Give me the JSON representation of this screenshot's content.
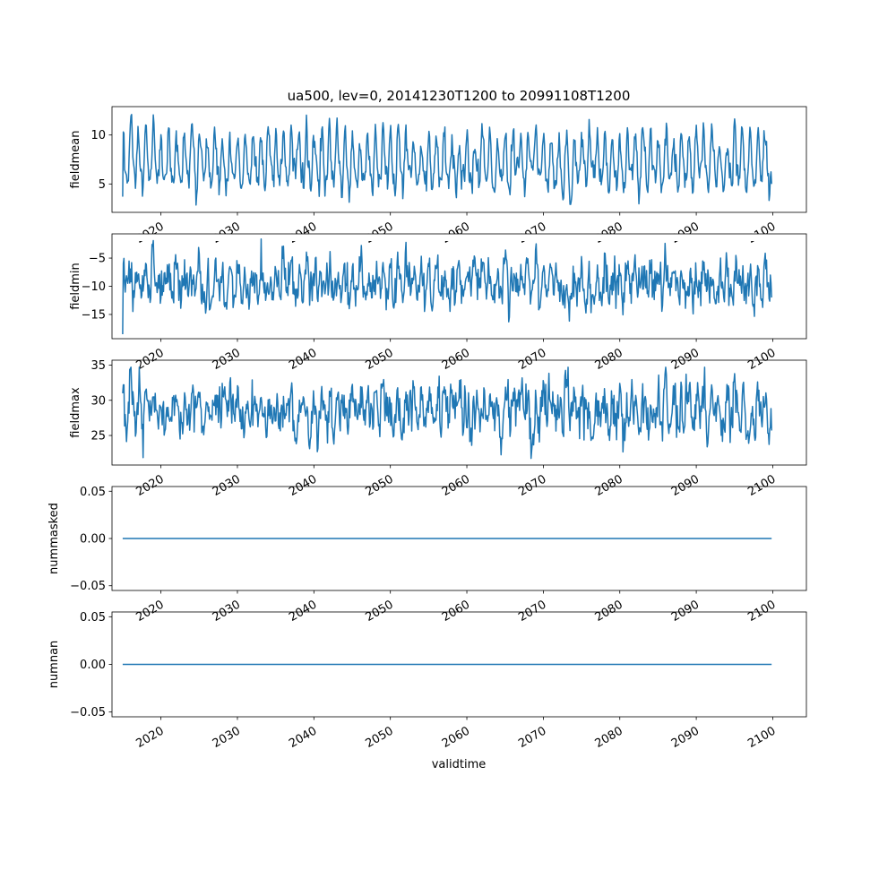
{
  "figure": {
    "title": "ua500, lev=0, 20141230T1200 to 20991108T1200",
    "xlabel": "validtime"
  },
  "colors": {
    "line": "#1f77b4",
    "axes": "#000000",
    "background": "#ffffff"
  },
  "chart_data": [
    {
      "type": "line",
      "ylabel": "fieldmean",
      "x_range": [
        "2014-12-30",
        "2099-11-08"
      ],
      "xlim": [
        2013.6,
        2104.4
      ],
      "ylim": [
        2.1,
        12.9
      ],
      "yticks": [
        5,
        10
      ],
      "xticks": [
        2020,
        2030,
        2040,
        2050,
        2060,
        2070,
        2080,
        2090,
        2100
      ],
      "series": [
        {
          "kind": "seasonal",
          "cycle_center": 7.2,
          "cycle_amplitude": 2.4,
          "noise": 1.0,
          "start": 3.7,
          "end": 5.0,
          "min": 2.5,
          "max": 12.6
        }
      ]
    },
    {
      "type": "line",
      "ylabel": "fieldmin",
      "x_range": [
        "2014-12-30",
        "2099-11-08"
      ],
      "xlim": [
        2013.6,
        2104.4
      ],
      "ylim": [
        -19.3,
        -0.7
      ],
      "yticks": [
        -15,
        -10,
        -5
      ],
      "xticks": [
        2020,
        2030,
        2040,
        2050,
        2060,
        2070,
        2080,
        2090,
        2100
      ],
      "series": [
        {
          "kind": "noisy",
          "cycle_center": -9.5,
          "cycle_amplitude": 1.8,
          "noise": 2.4,
          "start": -18.5,
          "end": -12.0,
          "min": -18.5,
          "max": -1.5
        }
      ]
    },
    {
      "type": "line",
      "ylabel": "fieldmax",
      "x_range": [
        "2014-12-30",
        "2099-11-08"
      ],
      "xlim": [
        2013.6,
        2104.4
      ],
      "ylim": [
        20.8,
        35.7
      ],
      "yticks": [
        25,
        30,
        35
      ],
      "xticks": [
        2020,
        2030,
        2040,
        2050,
        2060,
        2070,
        2080,
        2090,
        2100
      ],
      "series": [
        {
          "kind": "noisy",
          "cycle_center": 28.5,
          "cycle_amplitude": 1.5,
          "noise": 2.2,
          "start": 31.0,
          "end": 25.7,
          "min": 21.5,
          "max": 34.7
        }
      ]
    },
    {
      "type": "line",
      "ylabel": "nummasked",
      "x_range": [
        "2014-12-30",
        "2099-11-08"
      ],
      "xlim": [
        2013.6,
        2104.4
      ],
      "ylim": [
        -0.055,
        0.055
      ],
      "yticks": [
        -0.05,
        0.0,
        0.05
      ],
      "ytick_labels": [
        "−0.05",
        "0.00",
        "0.05"
      ],
      "xticks": [
        2020,
        2030,
        2040,
        2050,
        2060,
        2070,
        2080,
        2090,
        2100
      ],
      "series": [
        {
          "kind": "constant",
          "value": 0
        }
      ]
    },
    {
      "type": "line",
      "ylabel": "numnan",
      "x_range": [
        "2014-12-30",
        "2099-11-08"
      ],
      "xlim": [
        2013.6,
        2104.4
      ],
      "ylim": [
        -0.055,
        0.055
      ],
      "yticks": [
        -0.05,
        0.0,
        0.05
      ],
      "ytick_labels": [
        "−0.05",
        "0.00",
        "0.05"
      ],
      "xticks": [
        2020,
        2030,
        2040,
        2050,
        2060,
        2070,
        2080,
        2090,
        2100
      ],
      "series": [
        {
          "kind": "constant",
          "value": 0
        }
      ]
    }
  ]
}
